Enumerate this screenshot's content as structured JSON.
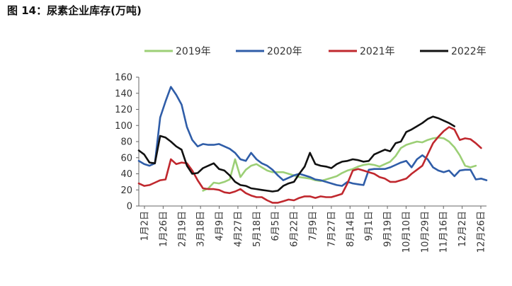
{
  "title": "图 14：尿素企业库存(万吨)",
  "chart_data": {
    "type": "line",
    "title": "图 14：尿素企业库存(万吨)",
    "ylim": [
      0,
      160
    ],
    "yticks": [
      0,
      20,
      40,
      60,
      80,
      100,
      120,
      140,
      160
    ],
    "x_tick_labels": [
      "1月2日",
      "1月26日",
      "2月19日",
      "3月18日",
      "4月9日",
      "4月27日",
      "5月18日",
      "6月5日",
      "6月22日",
      "7月9日",
      "7月27日",
      "8月14日",
      "9月1日",
      "9月19日",
      "10月10日",
      "10月29日",
      "11月16日",
      "12月2日",
      "12月26日"
    ],
    "legend_position": "top",
    "series": [
      {
        "name": "2019年",
        "color": "#9ccf76",
        "values": [
          null,
          null,
          null,
          null,
          null,
          null,
          null,
          null,
          null,
          null,
          null,
          null,
          19,
          22,
          29,
          28,
          30,
          33,
          58,
          36,
          45,
          50,
          52,
          48,
          44,
          42,
          42,
          42,
          40,
          38,
          36,
          35,
          34,
          32,
          31,
          33,
          35,
          37,
          41,
          44,
          46,
          49,
          51,
          52,
          51,
          49,
          52,
          55,
          62,
          72,
          76,
          78,
          80,
          79,
          82,
          84,
          85,
          84,
          80,
          73,
          63,
          50,
          48,
          50
        ]
      },
      {
        "name": "2020年",
        "color": "#2f5da8",
        "values": [
          56,
          52,
          50,
          53,
          110,
          130,
          148,
          138,
          126,
          98,
          82,
          74,
          77,
          76,
          76,
          77,
          74,
          71,
          66,
          58,
          56,
          66,
          58,
          53,
          50,
          45,
          38,
          32,
          35,
          38,
          40,
          38,
          36,
          33,
          32,
          30,
          28,
          26,
          25,
          30,
          28,
          27,
          26,
          45,
          46,
          46,
          46,
          48,
          51,
          54,
          56,
          48,
          58,
          63,
          58,
          48,
          44,
          42,
          44,
          37,
          44,
          45,
          45,
          33,
          34,
          32
        ]
      },
      {
        "name": "2021年",
        "color": "#c0282e",
        "values": [
          28,
          25,
          26,
          29,
          32,
          33,
          58,
          52,
          54,
          53,
          44,
          32,
          22,
          21,
          21,
          20,
          17,
          16,
          18,
          21,
          16,
          13,
          11,
          11,
          7,
          4,
          4,
          6,
          8,
          7,
          10,
          12,
          12,
          10,
          12,
          11,
          11,
          13,
          15,
          28,
          44,
          46,
          44,
          42,
          40,
          36,
          34,
          30,
          30,
          32,
          34,
          40,
          45,
          50,
          64,
          78,
          86,
          93,
          98,
          95,
          82,
          84,
          83,
          78,
          72
        ]
      },
      {
        "name": "2022年",
        "color": "#111111",
        "values": [
          69,
          64,
          54,
          53,
          87,
          85,
          80,
          74,
          70,
          50,
          40,
          41,
          47,
          50,
          53,
          46,
          44,
          38,
          30,
          26,
          25,
          22,
          21,
          20,
          19,
          18,
          19,
          25,
          28,
          30,
          40,
          49,
          66,
          52,
          50,
          49,
          47,
          52,
          55,
          56,
          58,
          57,
          55,
          56,
          64,
          67,
          70,
          68,
          78,
          80,
          92,
          95,
          99,
          103,
          108,
          111,
          109,
          106,
          103,
          99
        ]
      }
    ]
  }
}
